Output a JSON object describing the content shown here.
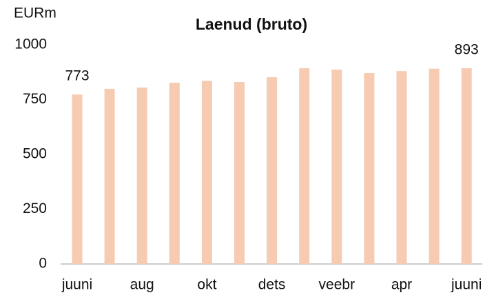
{
  "chart_data": {
    "type": "bar",
    "title": "Laenud (bruto)",
    "y_unit": "EURm",
    "categories": [
      "juuni",
      null,
      "aug",
      null,
      "okt",
      null,
      "dets",
      null,
      "veebr",
      null,
      "apr",
      null,
      "juuni"
    ],
    "values": [
      773,
      799,
      805,
      827,
      836,
      830,
      852,
      893,
      887,
      871,
      880,
      891,
      893
    ],
    "color": "#f6cbb2",
    "ylim": [
      0,
      1000
    ],
    "yticks": [
      0,
      250,
      500,
      750,
      1000
    ],
    "grid": false
  }
}
